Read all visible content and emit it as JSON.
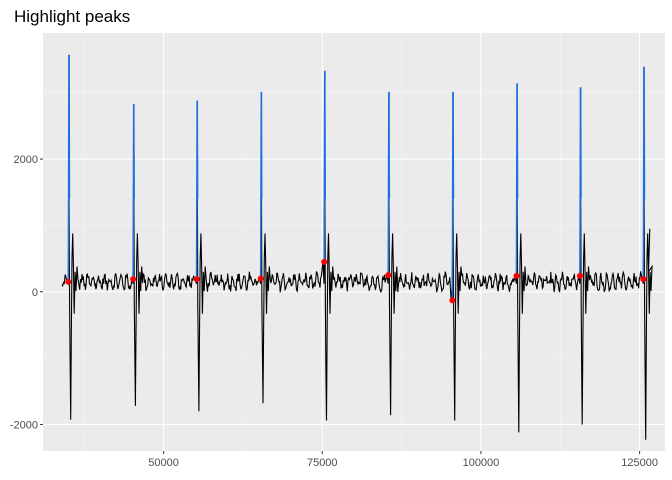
{
  "chart_data": {
    "type": "line",
    "title": "Highlight peaks",
    "xlabel": "",
    "ylabel": "",
    "xlim": [
      31000,
      129000
    ],
    "ylim": [
      -2400,
      3900
    ],
    "x_ticks": [
      50000,
      75000,
      100000,
      125000
    ],
    "x_tick_labels": [
      "50000",
      "75000",
      "100000",
      "125000"
    ],
    "y_ticks": [
      -2000,
      0,
      2000
    ],
    "y_tick_labels": [
      "-2000",
      "0",
      "2000"
    ],
    "grid": true,
    "legend": "none",
    "colors": {
      "panel": "#EBEBEB",
      "grid_major": "#FFFFFF",
      "grid_minor": "#F5F5F5",
      "signal": "#000000",
      "peak_segments": "#1F6FE0",
      "peak_markers": "#FF0000"
    },
    "peaks": [
      {
        "x": 35100,
        "y": 3570
      },
      {
        "x": 45300,
        "y": 2830
      },
      {
        "x": 55300,
        "y": 2880
      },
      {
        "x": 65400,
        "y": 3010
      },
      {
        "x": 75400,
        "y": 3330
      },
      {
        "x": 85500,
        "y": 3010
      },
      {
        "x": 95600,
        "y": 3010
      },
      {
        "x": 105700,
        "y": 3140
      },
      {
        "x": 115700,
        "y": 3080
      },
      {
        "x": 125700,
        "y": 3390
      }
    ],
    "markers": [
      {
        "x": 35000,
        "y": 150
      },
      {
        "x": 45200,
        "y": 190
      },
      {
        "x": 55200,
        "y": 190
      },
      {
        "x": 65300,
        "y": 200
      },
      {
        "x": 75300,
        "y": 450
      },
      {
        "x": 85400,
        "y": 250
      },
      {
        "x": 95500,
        "y": -130
      },
      {
        "x": 105600,
        "y": 240
      },
      {
        "x": 115600,
        "y": 240
      },
      {
        "x": 125600,
        "y": 190
      }
    ],
    "troughs": [
      -1930,
      -1720,
      -1800,
      -1680,
      -1940,
      -1860,
      -1940,
      -2120,
      -2000,
      -2230
    ],
    "baseline": 150,
    "x_start": 34000,
    "x_end": 126600
  }
}
